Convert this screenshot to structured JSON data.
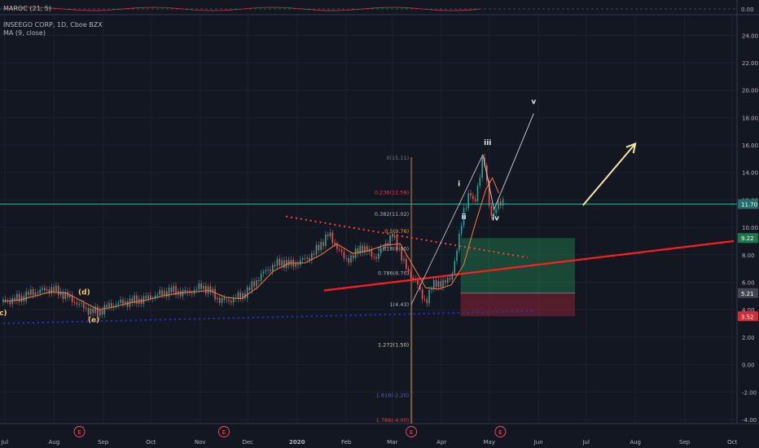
{
  "indicator": {
    "label": "MAROC (21, 5)",
    "zero_label": "0.00"
  },
  "symbol": {
    "title": "INSEEGO CORP, 1D, Cboe BZX",
    "ma_label": "MA (9, close)"
  },
  "chart_data": {
    "type": "line",
    "y_ticks": [
      "24.00",
      "22.00",
      "20.00",
      "18.00",
      "16.00",
      "14.00",
      "12.00",
      "10.00",
      "8.00",
      "6.00",
      "4.00",
      "2.00",
      "0.00",
      "-2.00",
      "-4.00"
    ],
    "ylim": [
      -4.3,
      25.5
    ],
    "x_ticks": [
      "Jul",
      "Aug",
      "Sep",
      "Oct",
      "Nov",
      "Dec",
      "2020",
      "Feb",
      "Mar",
      "Apr",
      "May",
      "Jun",
      "Jul",
      "Aug",
      "Sep",
      "Oct"
    ],
    "x_tick_days": [
      1,
      32,
      63,
      93,
      124,
      154,
      185,
      216,
      245,
      276,
      306,
      337,
      367,
      398,
      429,
      459
    ],
    "price_series_days": [
      0,
      5,
      10,
      15,
      20,
      25,
      30,
      35,
      40,
      45,
      50,
      55,
      60,
      65,
      70,
      75,
      80,
      85,
      90,
      95,
      100,
      105,
      110,
      115,
      120,
      125,
      130,
      135,
      140,
      145,
      150,
      155,
      160,
      165,
      170,
      175,
      180,
      185,
      190,
      195,
      200,
      205,
      210,
      215,
      220,
      225,
      230,
      235,
      240,
      245,
      250,
      255,
      260,
      263,
      266,
      270,
      274,
      278,
      282,
      286,
      290,
      294,
      296,
      298,
      300,
      302,
      304,
      306,
      308,
      310,
      312,
      315
    ],
    "price_series_values": [
      4.6,
      4.7,
      4.8,
      5.1,
      5.3,
      5.4,
      5.5,
      5.3,
      5.0,
      4.6,
      4.2,
      3.9,
      3.8,
      4.2,
      4.4,
      4.5,
      4.6,
      4.7,
      4.8,
      5.0,
      5.2,
      5.4,
      5.3,
      5.2,
      5.4,
      5.7,
      5.4,
      4.8,
      4.6,
      4.8,
      5.0,
      5.5,
      6.2,
      6.8,
      7.2,
      7.5,
      7.3,
      7.4,
      7.7,
      8.0,
      8.8,
      9.5,
      8.6,
      7.7,
      7.8,
      8.6,
      8.2,
      7.8,
      8.7,
      9.4,
      8.2,
      6.6,
      6.2,
      5.0,
      4.6,
      5.7,
      6.0,
      5.9,
      6.4,
      8.5,
      11.3,
      12.6,
      11.6,
      12.5,
      13.8,
      15.2,
      13.8,
      11.6,
      10.8,
      11.3,
      11.6,
      12.0
    ],
    "ma_series_days": [
      0,
      10,
      20,
      30,
      40,
      50,
      60,
      70,
      80,
      90,
      100,
      110,
      120,
      130,
      140,
      150,
      160,
      170,
      180,
      190,
      200,
      210,
      220,
      230,
      240,
      250,
      258,
      266,
      274,
      282,
      290,
      296,
      300,
      304,
      308,
      312
    ],
    "ma_series_values": [
      4.6,
      4.7,
      5.0,
      5.3,
      5.2,
      4.6,
      4.0,
      4.2,
      4.5,
      4.7,
      5.0,
      5.2,
      5.3,
      5.4,
      4.9,
      4.8,
      5.6,
      6.8,
      7.4,
      7.4,
      8.0,
      8.8,
      8.1,
      8.3,
      8.7,
      8.8,
      7.2,
      5.6,
      5.5,
      5.8,
      7.3,
      9.8,
      11.3,
      12.8,
      13.6,
      12.5
    ],
    "wave_labels": [
      {
        "label": "(d)",
        "day": 51,
        "price": 5.1
      },
      {
        "label": "(e)",
        "day": 57,
        "price": 3.1
      },
      {
        "label": "i",
        "day": 287,
        "price": 13.0
      },
      {
        "label": "ii",
        "day": 290,
        "price": 10.6
      },
      {
        "label": "iii",
        "day": 305,
        "price": 16.0
      },
      {
        "label": "iv",
        "day": 310,
        "price": 10.5
      },
      {
        "label": "v",
        "day": 334,
        "price": 19.0
      },
      {
        "label": "c)",
        "day": 0,
        "price": 3.6
      }
    ],
    "fib_levels": [
      {
        "label": "0(15.11)",
        "price": 15.11,
        "color": "#787b86"
      },
      {
        "label": "0.236(12.59)",
        "price": 12.59,
        "color": "#f23645"
      },
      {
        "label": "0.382(11.02)",
        "price": 11.02,
        "color": "#b2b5be"
      },
      {
        "label": "0.5(9.76)",
        "price": 9.76,
        "color": "#ff9800"
      },
      {
        "label": "0.618(8.50)",
        "price": 8.5,
        "color": "#b2b5be"
      },
      {
        "label": "0.786(6.70)",
        "price": 6.7,
        "color": "#b2b5be"
      },
      {
        "label": "1(4.43)",
        "price": 4.43,
        "color": "#b2b5be"
      },
      {
        "label": "1.272(1.50)",
        "price": 1.5,
        "color": "#d1d4a0"
      },
      {
        "label": "1.618(-2.20)",
        "price": -2.2,
        "color": "#5b5fc7"
      },
      {
        "label": "1.786(-4.00)",
        "price": -4.0,
        "color": "#f23645"
      }
    ],
    "horizontal_level": 11.7,
    "trendlines": [
      {
        "name": "support",
        "color": "#ff1f1f",
        "dash": false,
        "from": {
          "day": 202,
          "price": 5.4
        },
        "to": {
          "day": 460,
          "price": 9.0
        }
      },
      {
        "name": "resistance",
        "color": "#ff3b3b",
        "dash": true,
        "from": {
          "day": 178,
          "price": 10.8
        },
        "to": {
          "day": 330,
          "price": 7.8
        }
      },
      {
        "name": "base",
        "color": "#2733c9",
        "dash": true,
        "from": {
          "day": 0,
          "price": 3.0
        },
        "to": {
          "day": 335,
          "price": 3.9
        }
      }
    ],
    "projection": {
      "from": {
        "day": 302,
        "price": 15.3
      },
      "points": [
        {
          "day": 309,
          "price": 11.3
        },
        {
          "day": 334,
          "price": 18.3
        }
      ]
    },
    "arrow": {
      "from": {
        "day": 365,
        "price": 11.6
      },
      "to": {
        "day": 398,
        "price": 16.1
      },
      "color": "#f5e6a8"
    },
    "position": {
      "entry": 5.21,
      "target": 9.22,
      "stop": 3.52,
      "day_start": 288,
      "day_end": 360
    },
    "event_days": [
      48,
      139,
      257,
      313
    ],
    "price_labels": [
      {
        "text": "11.70",
        "price": 11.7,
        "bg": "#1f6f6a"
      },
      {
        "text": "9.22",
        "price": 9.22,
        "bg": "#1b7a4b"
      },
      {
        "text": "5.21",
        "price": 5.21,
        "bg": "#434651"
      },
      {
        "text": "3.52",
        "price": 3.52,
        "bg": "#d12d36"
      }
    ],
    "event_marker_text": "E"
  }
}
